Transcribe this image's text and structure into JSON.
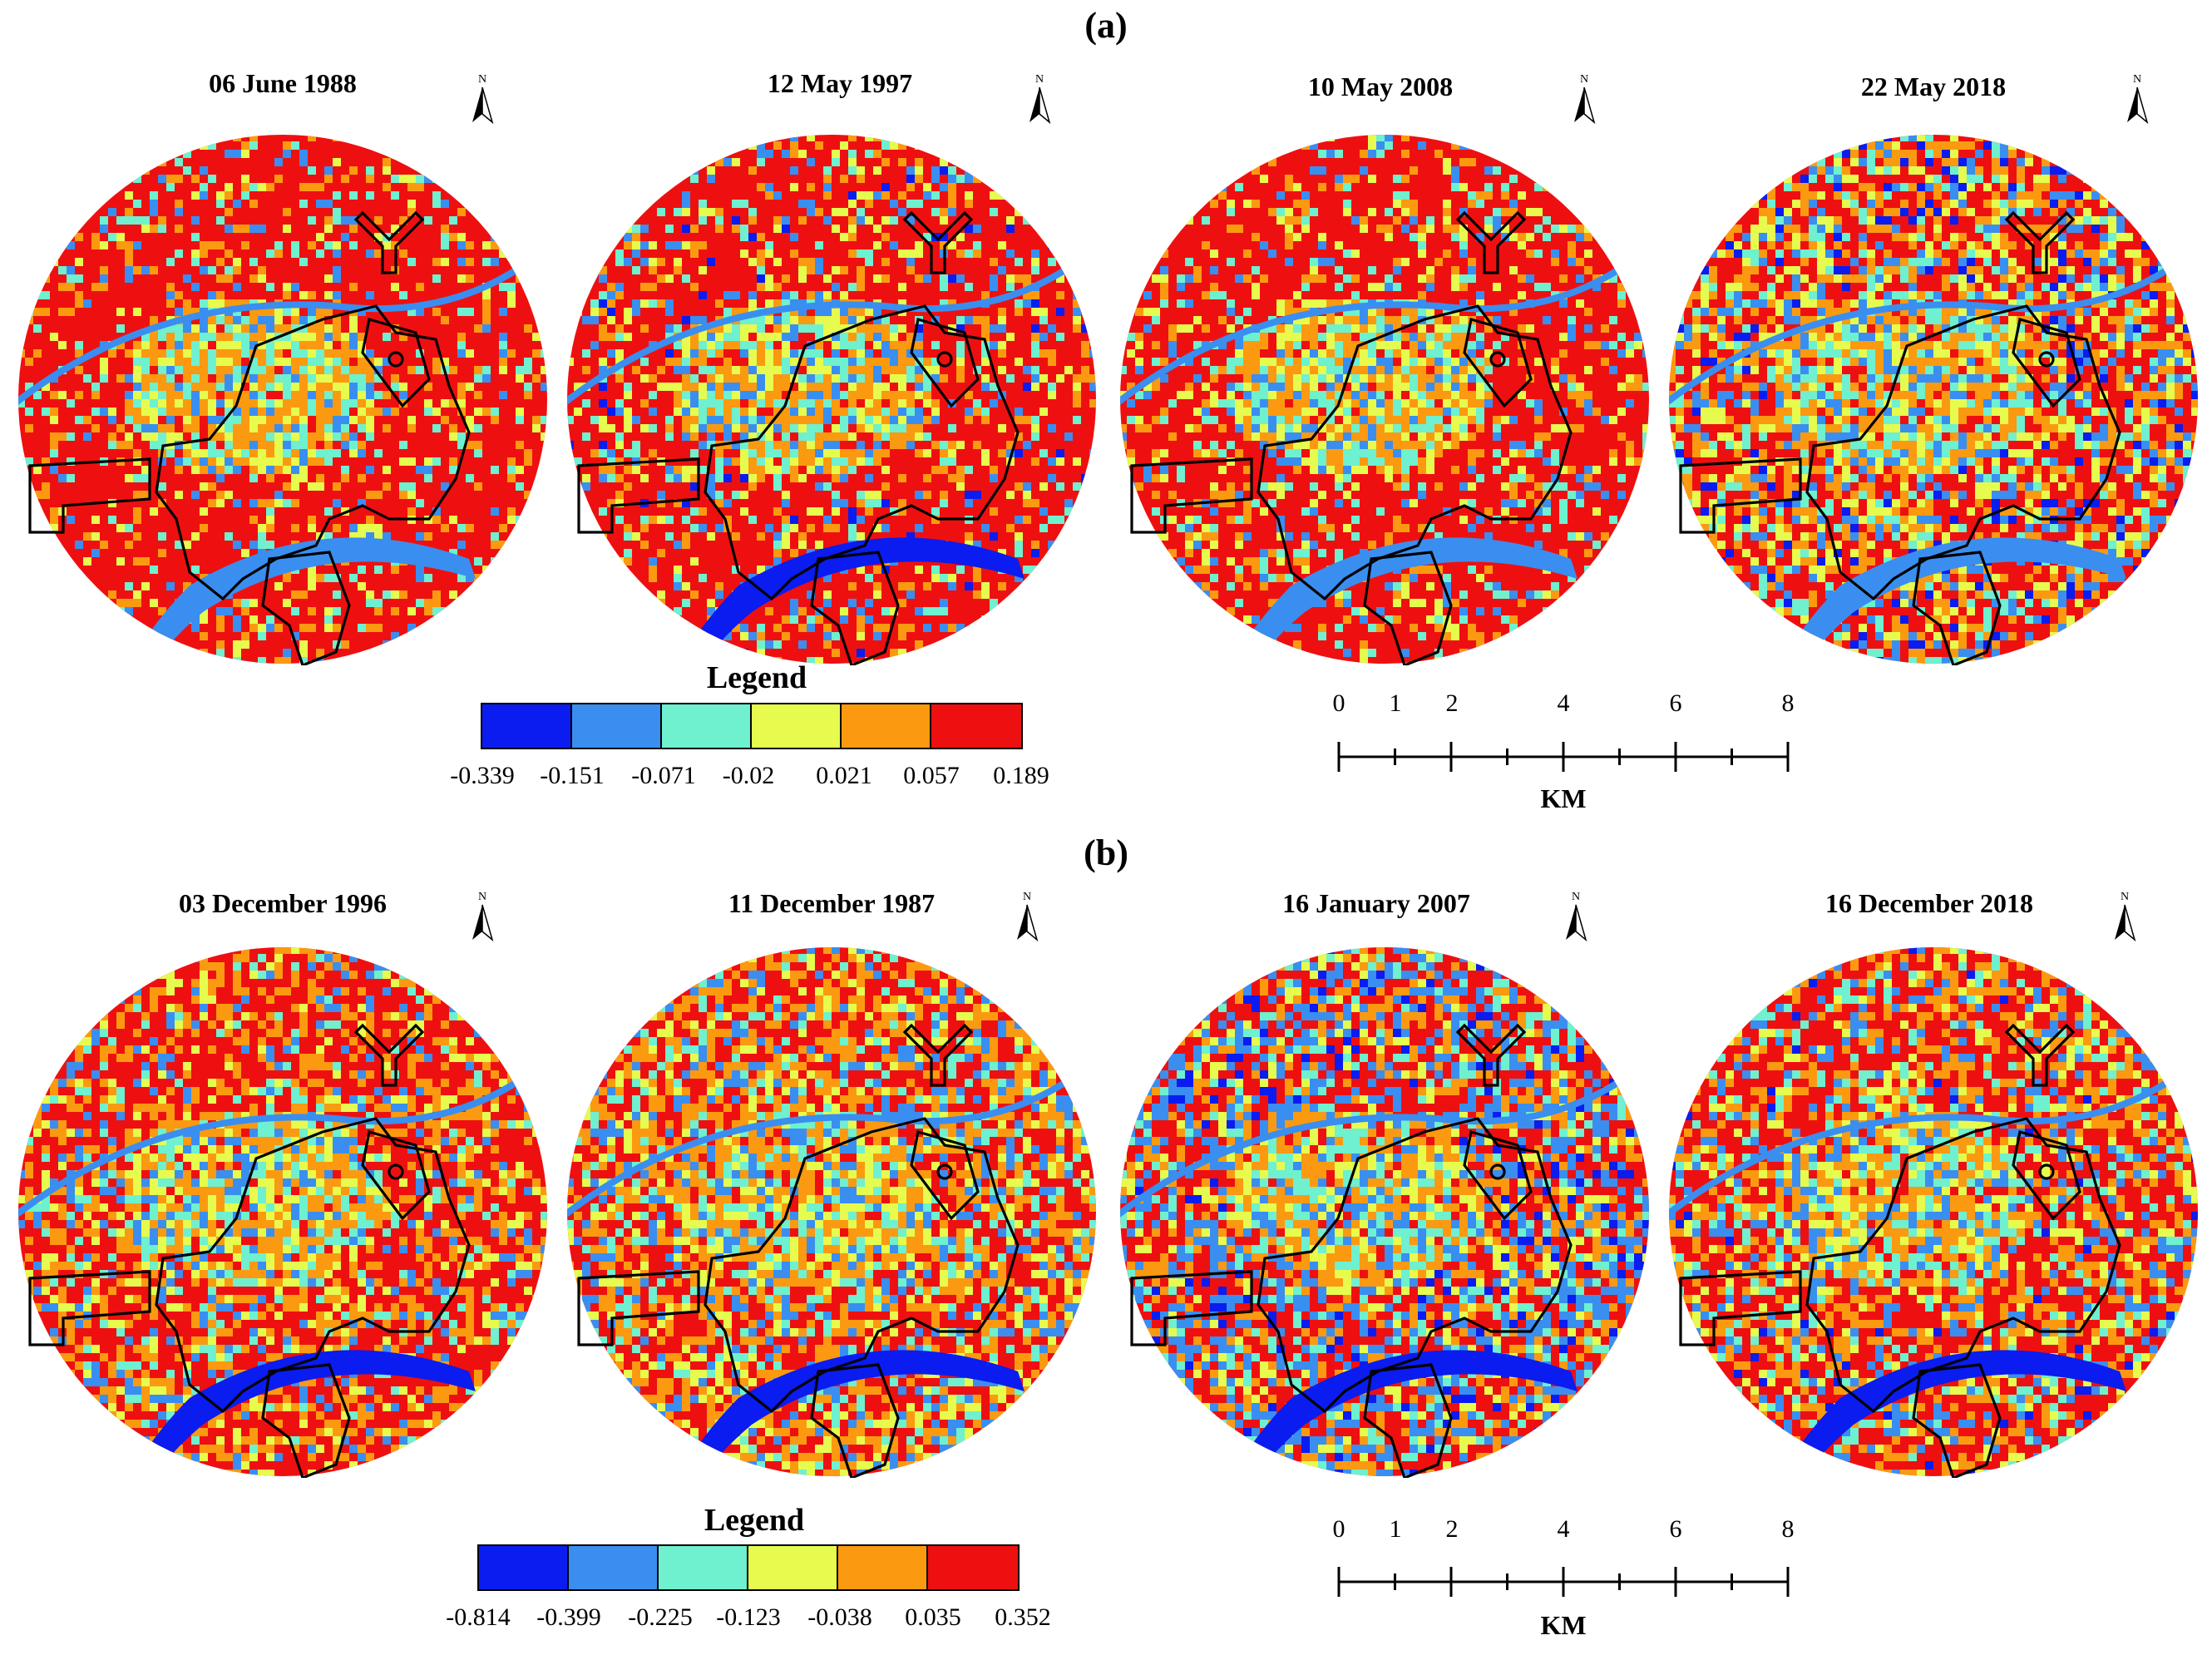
{
  "panel_a": {
    "label": "(a)",
    "maps": [
      {
        "title": "06 June 1988"
      },
      {
        "title": "12 May 1997"
      },
      {
        "title": "10 May 2008"
      },
      {
        "title": "22 May 2018"
      }
    ],
    "legend": {
      "title": "Legend",
      "colors": [
        "#0a1cf0",
        "#3a8ef0",
        "#6ff0cf",
        "#e6fb4e",
        "#fb9a10",
        "#ee1010"
      ],
      "values": [
        "-0.339",
        "-0.151",
        "-0.071",
        "-0.02",
        "0.021",
        "0.057",
        "0.189"
      ]
    }
  },
  "panel_b": {
    "label": "(b)",
    "maps": [
      {
        "title": "03 December 1996"
      },
      {
        "title": "11 December 1987"
      },
      {
        "title": "16 January 2007"
      },
      {
        "title": "16 December 2018"
      }
    ],
    "legend": {
      "title": "Legend",
      "colors": [
        "#0a1cf0",
        "#3a8ef0",
        "#6ff0cf",
        "#e6fb4e",
        "#fb9a10",
        "#ee1010"
      ],
      "values": [
        "-0.814",
        "-0.399",
        "-0.225",
        "-0.123",
        "-0.038",
        "0.035",
        "0.352"
      ]
    }
  },
  "north_arrow": {
    "letter": "N"
  },
  "scale_bar": {
    "numbers": [
      "0",
      "1",
      "2",
      "4",
      "6",
      "8"
    ],
    "unit": "KM"
  },
  "colors": {
    "red": "#ee1010",
    "orange": "#fb9a10",
    "yellow": "#e6fb4e",
    "teal": "#6ff0cf",
    "lightblue": "#3a8ef0",
    "blue": "#0a1cf0"
  }
}
